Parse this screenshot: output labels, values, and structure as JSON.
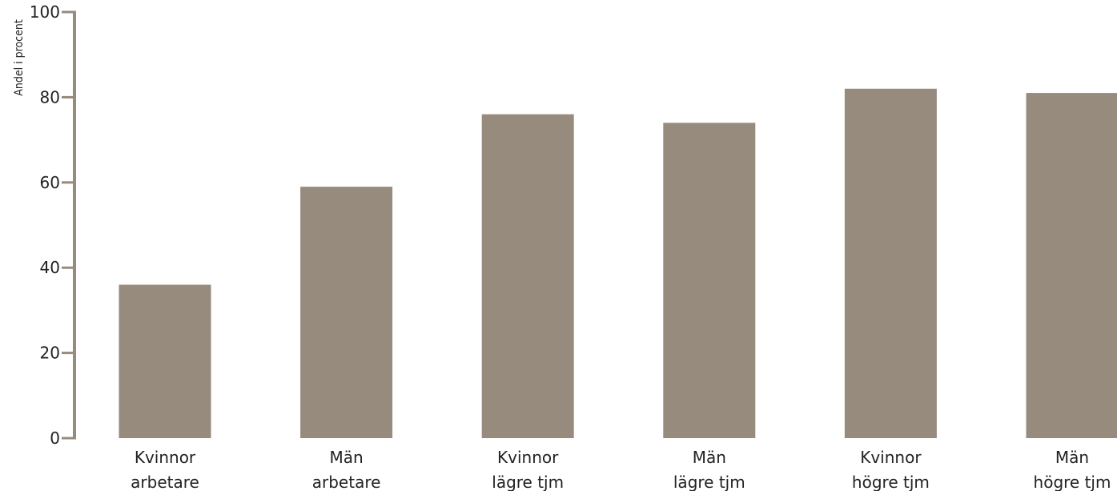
{
  "chart_data": {
    "type": "bar",
    "title": "",
    "xlabel": "",
    "ylabel": "Andel i procent",
    "ylim": [
      0,
      100
    ],
    "yticks": [
      0,
      20,
      40,
      60,
      80,
      100
    ],
    "grid": false,
    "bar_color": "#978b7d",
    "axis_color": "#978b7d",
    "categories": [
      [
        "Kvinnor",
        "arbetare"
      ],
      [
        "Män",
        "arbetare"
      ],
      [
        "Kvinnor",
        "lägre tjm"
      ],
      [
        "Män",
        "lägre tjm"
      ],
      [
        "Kvinnor",
        "högre tjm"
      ],
      [
        "Män",
        "högre tjm"
      ]
    ],
    "values": [
      36,
      59,
      76,
      74,
      82,
      81
    ]
  }
}
